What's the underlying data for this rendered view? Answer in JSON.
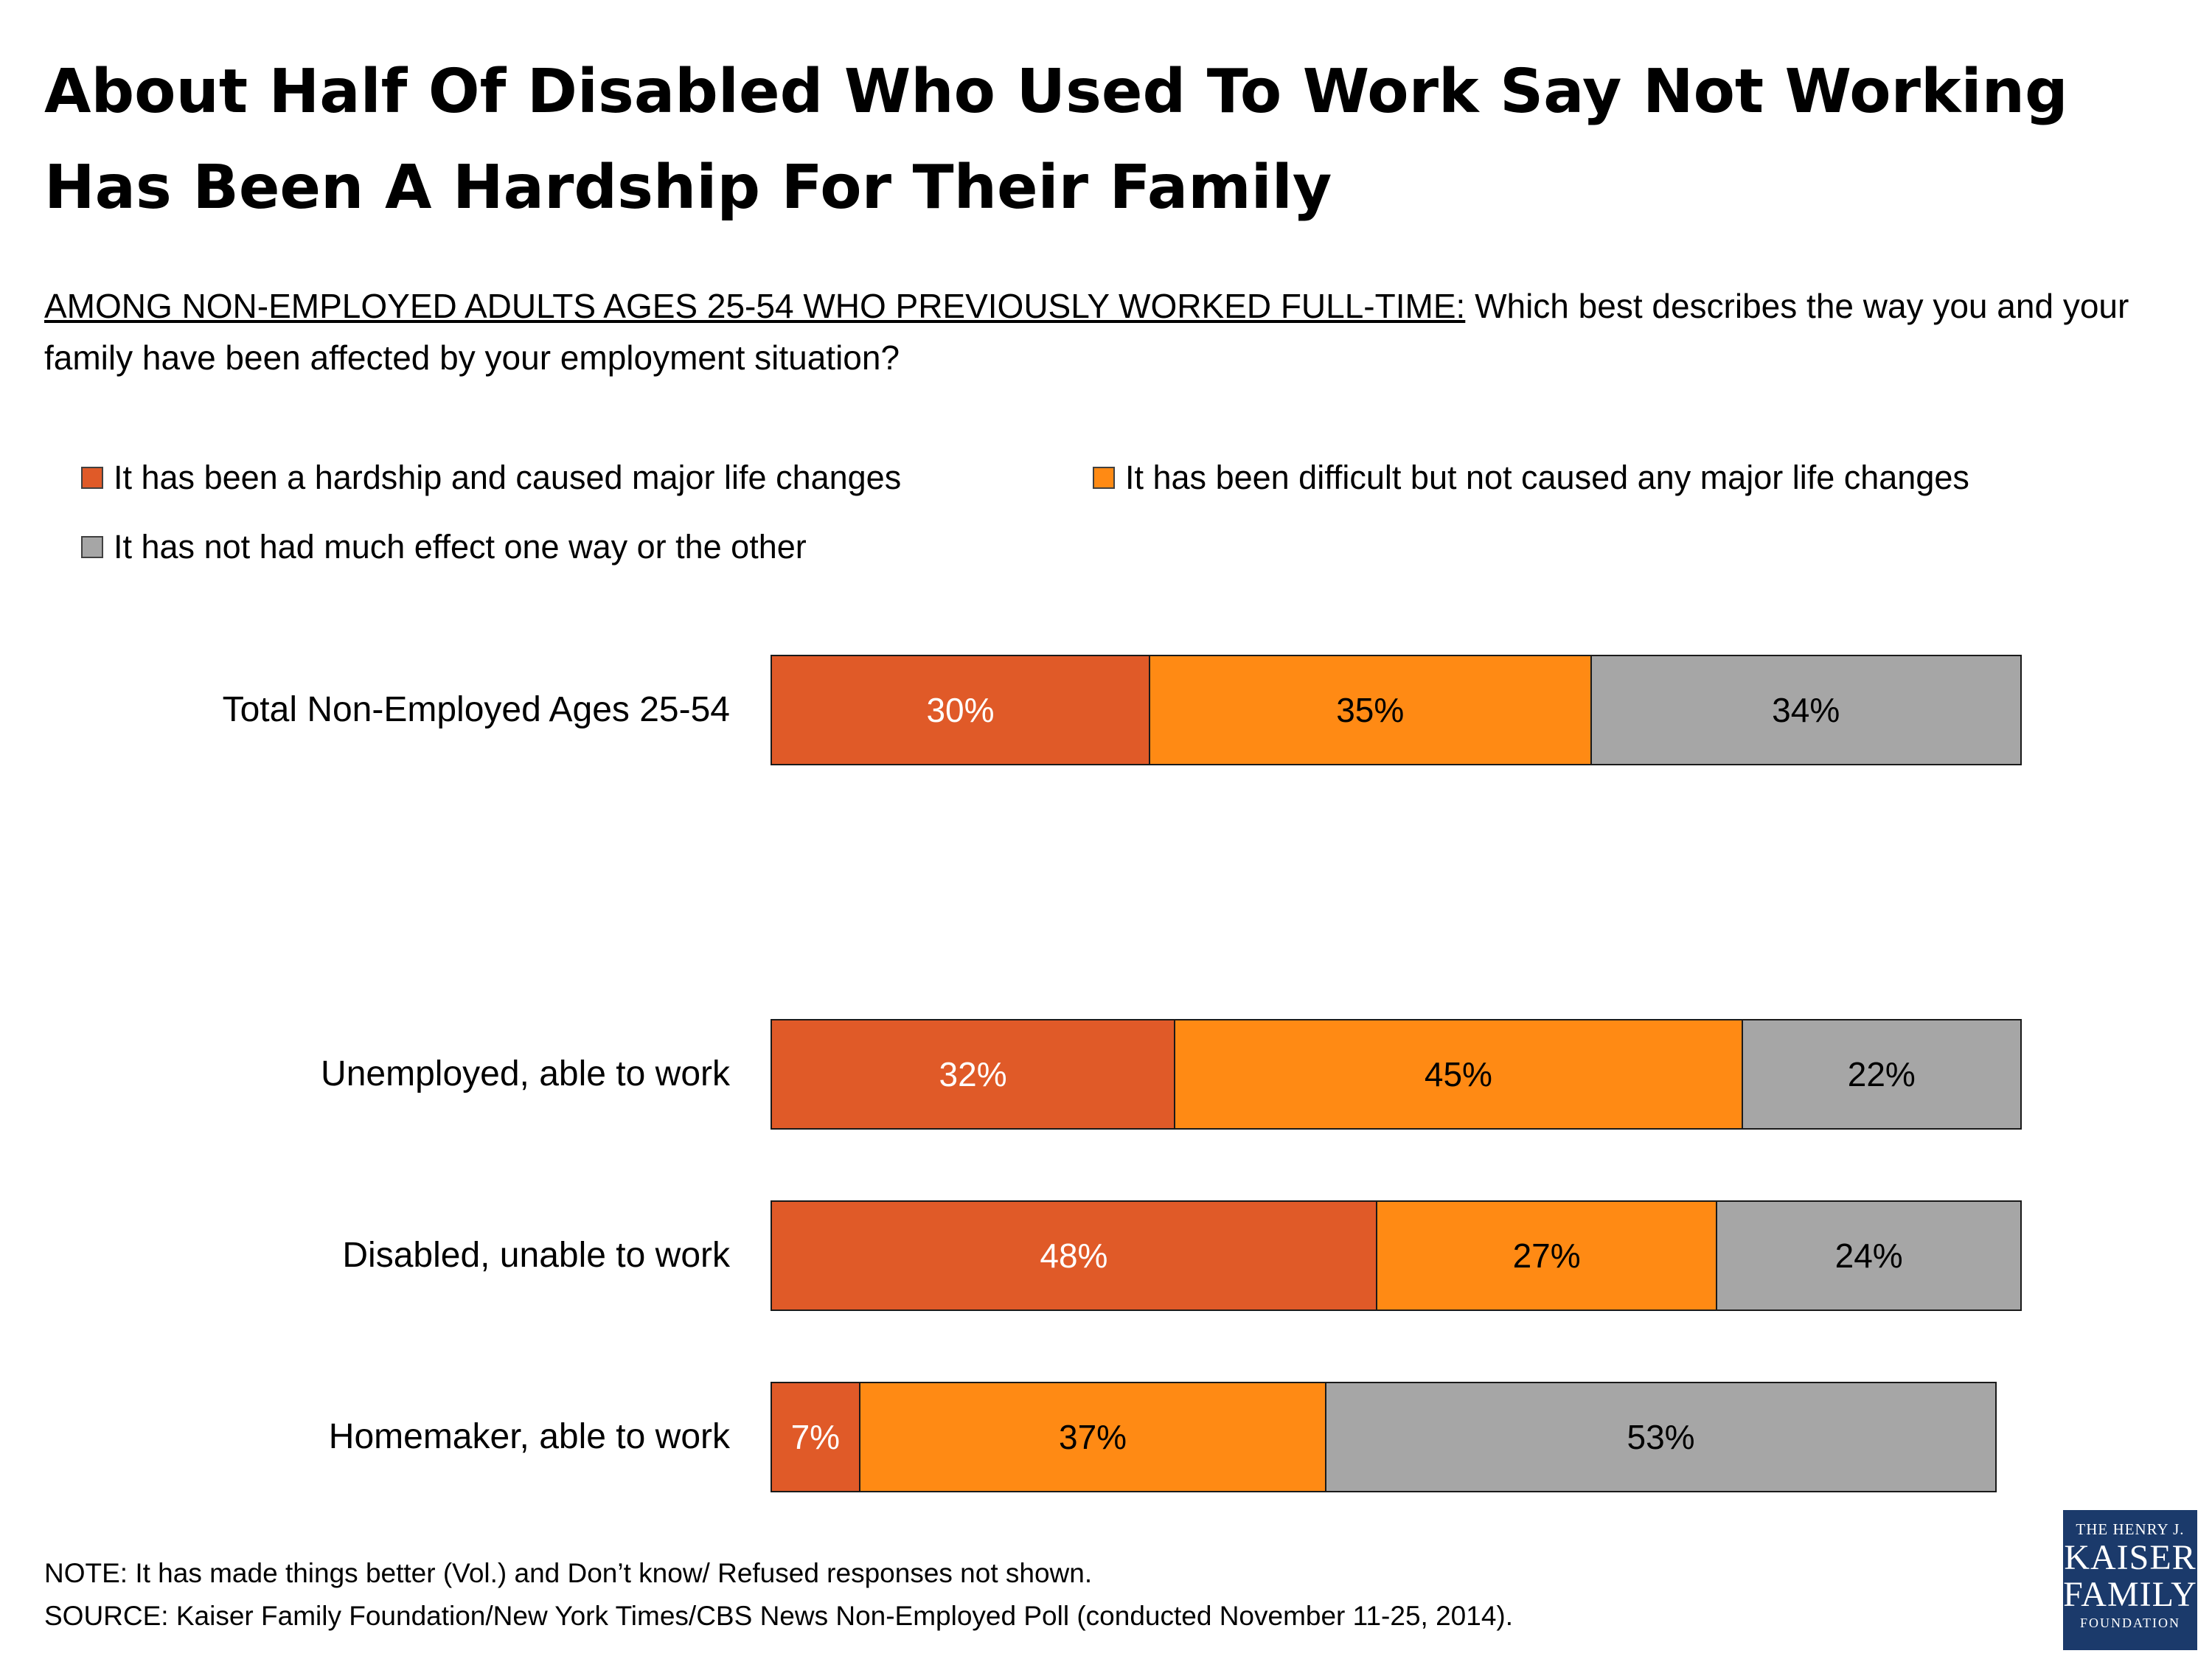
{
  "title": "About Half Of Disabled Who Used To Work Say Not Working Has Been A Hardship For Their Family",
  "question": {
    "lead": "AMONG NON-EMPLOYED ADULTS AGES 25-54 WHO PREVIOUSLY WORKED FULL-TIME:",
    "text": " Which best describes the way you and your family have been affected by your employment situation?"
  },
  "colors": {
    "hardship": "#E05A28",
    "difficult": "#FF8A14",
    "no_effect": "#A6A6A6"
  },
  "chart_data": {
    "type": "bar",
    "orientation": "horizontal",
    "stacked": true,
    "categories": [
      "Total Non-Employed Ages 25-54",
      "Unemployed, able to work",
      "Disabled, unable to work",
      "Homemaker, able to work"
    ],
    "series": [
      {
        "name": "It has been a hardship and caused major life changes",
        "values": [
          30,
          32,
          48,
          7
        ],
        "labels": [
          "30%",
          "32%",
          "48%",
          "7%"
        ]
      },
      {
        "name": "It has been difficult but not caused any major life changes",
        "values": [
          35,
          45,
          27,
          37
        ],
        "labels": [
          "35%",
          "45%",
          "27%",
          "37%"
        ]
      },
      {
        "name": "It has not had much effect one way or the other",
        "values": [
          34,
          22,
          24,
          53
        ],
        "labels": [
          "34%",
          "22%",
          "24%",
          "53%"
        ]
      }
    ],
    "xlim": [
      0,
      100
    ],
    "legend_position": "top",
    "grid": false
  },
  "footer": {
    "note": "NOTE: It has made things better (Vol.) and Don’t know/ Refused responses not shown.",
    "source": "SOURCE: Kaiser Family Foundation/New York Times/CBS News Non-Employed Poll (conducted November 11-25, 2014)."
  },
  "logo": {
    "line1": "THE HENRY J.",
    "line2": "KAISER",
    "line3": "FAMILY",
    "line4": "FOUNDATION"
  }
}
